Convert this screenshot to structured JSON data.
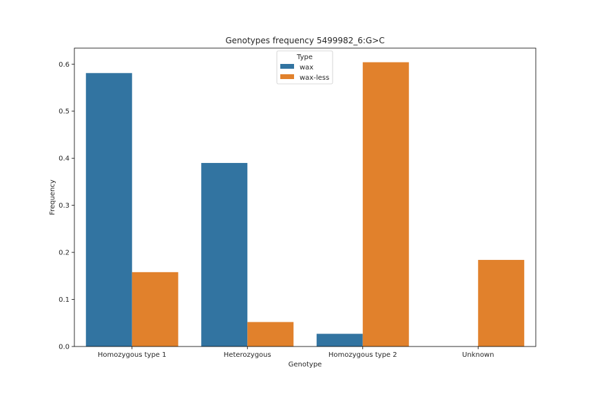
{
  "chart_data": {
    "type": "bar",
    "title": "Genotypes frequency 5499982_6:G>C",
    "xlabel": "Genotype",
    "ylabel": "Frequency",
    "categories": [
      "Homozygous type 1",
      "Heterozygous",
      "Homozygous type 2",
      "Unknown"
    ],
    "series": [
      {
        "name": "wax",
        "color": "#3274a1",
        "values": [
          0.581,
          0.39,
          0.027,
          0.0
        ]
      },
      {
        "name": "wax-less",
        "color": "#e1812c",
        "values": [
          0.158,
          0.052,
          0.604,
          0.184
        ]
      }
    ],
    "ylim": [
      0,
      0.634
    ],
    "yticks": [
      "0.0",
      "0.1",
      "0.2",
      "0.3",
      "0.4",
      "0.5",
      "0.6"
    ],
    "legend": {
      "title": "Type",
      "position": "top-center"
    },
    "grid": false
  }
}
